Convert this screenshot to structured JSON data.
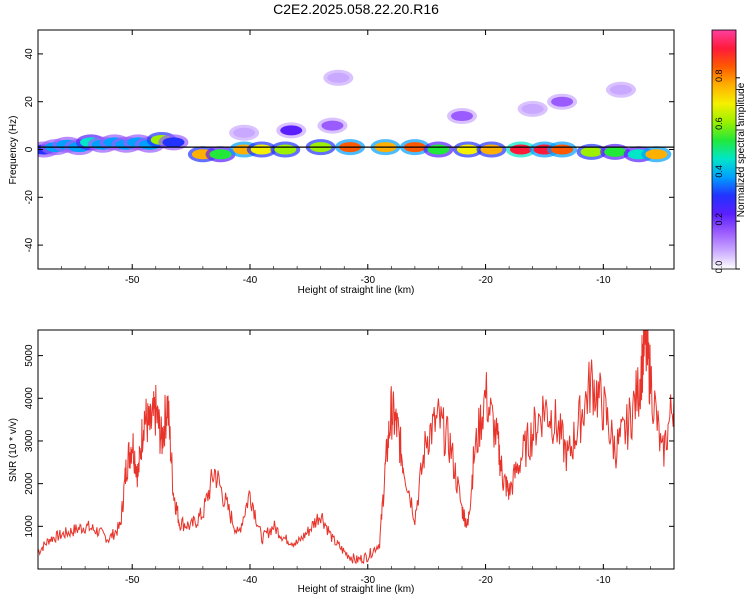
{
  "title": "C2E2.2025.058.22.20.R16",
  "colors": {
    "snr_line": "#e8332a",
    "center_line": "#000000",
    "colorbar": [
      "#ffffff",
      "#c9a8ff",
      "#9b5cff",
      "#5a1fff",
      "#2233ff",
      "#00a0ff",
      "#00e6c8",
      "#22e83a",
      "#9cf000",
      "#f5f000",
      "#ffb000",
      "#ff5a00",
      "#ff1a3a",
      "#ff3fa0"
    ]
  },
  "chart_data": [
    {
      "type": "heatmap",
      "xlabel": "Height of straight line (km)",
      "ylabel": "Frequency (Hz)",
      "xlim": [
        -58,
        -4
      ],
      "ylim": [
        -50,
        50
      ],
      "xticks": [
        -50,
        -40,
        -30,
        -20,
        -10
      ],
      "yticks": [
        -40,
        -20,
        0,
        20,
        40
      ],
      "xtick_labels": [
        "-50",
        "-40",
        "-30",
        "-20",
        "-10"
      ],
      "ytick_labels": [
        "-40",
        "-20",
        "0",
        "20",
        "40"
      ],
      "colorbar": {
        "label": "Normalized spectral amplitude",
        "range": [
          0,
          1
        ],
        "ticks": [
          0.0,
          0.2,
          0.4,
          0.6,
          0.8
        ],
        "tick_labels": [
          "0.0",
          "0.2",
          "0.4",
          "0.6",
          "0.8"
        ]
      },
      "model_line": {
        "x": [
          -58,
          -4
        ],
        "y": [
          1,
          1
        ]
      },
      "cells": [
        {
          "x": -57.5,
          "y": 0,
          "v": 0.3
        },
        {
          "x": -56.5,
          "y": 1,
          "v": 0.35
        },
        {
          "x": -55.5,
          "y": 2,
          "v": 0.4
        },
        {
          "x": -54.5,
          "y": 1,
          "v": 0.35
        },
        {
          "x": -53.5,
          "y": 3,
          "v": 0.45
        },
        {
          "x": -52.5,
          "y": 2,
          "v": 0.4
        },
        {
          "x": -51.5,
          "y": 3,
          "v": 0.4
        },
        {
          "x": -50.5,
          "y": 2,
          "v": 0.35
        },
        {
          "x": -49.5,
          "y": 3,
          "v": 0.4
        },
        {
          "x": -48.5,
          "y": 2,
          "v": 0.35
        },
        {
          "x": -47.5,
          "y": 4,
          "v": 0.6
        },
        {
          "x": -46.5,
          "y": 3,
          "v": 0.3
        },
        {
          "x": -44.0,
          "y": -2,
          "v": 0.75
        },
        {
          "x": -42.5,
          "y": -2,
          "v": 0.5
        },
        {
          "x": -40.5,
          "y": 0,
          "v": 0.8
        },
        {
          "x": -39.0,
          "y": 0,
          "v": 0.7
        },
        {
          "x": -37.0,
          "y": 0,
          "v": 0.6
        },
        {
          "x": -34.0,
          "y": 1,
          "v": 0.65
        },
        {
          "x": -31.5,
          "y": 1,
          "v": 0.85
        },
        {
          "x": -28.5,
          "y": 1,
          "v": 0.8
        },
        {
          "x": -26.0,
          "y": 1,
          "v": 0.85
        },
        {
          "x": -24.0,
          "y": 0,
          "v": 0.55
        },
        {
          "x": -21.5,
          "y": 0,
          "v": 0.7
        },
        {
          "x": -19.5,
          "y": 0,
          "v": 0.75
        },
        {
          "x": -17.0,
          "y": 0,
          "v": 0.95
        },
        {
          "x": -15.0,
          "y": 0,
          "v": 0.9
        },
        {
          "x": -13.5,
          "y": 0,
          "v": 0.85
        },
        {
          "x": -11.0,
          "y": -1,
          "v": 0.6
        },
        {
          "x": -9.0,
          "y": -1,
          "v": 0.5
        },
        {
          "x": -7.0,
          "y": -2,
          "v": 0.45
        },
        {
          "x": -5.5,
          "y": -2,
          "v": 0.8
        },
        {
          "x": -36.5,
          "y": 8,
          "v": 0.2
        },
        {
          "x": -33.0,
          "y": 10,
          "v": 0.15
        },
        {
          "x": -22.0,
          "y": 14,
          "v": 0.12
        },
        {
          "x": -16.0,
          "y": 17,
          "v": 0.1
        },
        {
          "x": -13.5,
          "y": 20,
          "v": 0.15
        },
        {
          "x": -32.5,
          "y": 30,
          "v": 0.05
        },
        {
          "x": -40.5,
          "y": 7,
          "v": 0.1
        },
        {
          "x": -8.5,
          "y": 25,
          "v": 0.06
        }
      ]
    },
    {
      "type": "line",
      "xlabel": "Height of straight line (km)",
      "ylabel": "SNR (10 * v/v)",
      "xlim": [
        -58,
        -4
      ],
      "ylim": [
        0,
        5600
      ],
      "xticks": [
        -50,
        -40,
        -30,
        -20,
        -10
      ],
      "yticks": [
        1000,
        2000,
        3000,
        4000,
        5000
      ],
      "xtick_labels": [
        "-50",
        "-40",
        "-30",
        "-20",
        "-10"
      ],
      "ytick_labels": [
        "1000",
        "2000",
        "3000",
        "4000",
        "5000"
      ],
      "series": [
        {
          "x": [
            -58,
            -57,
            -56,
            -55,
            -54,
            -53,
            -52,
            -51,
            -50.5,
            -50,
            -49.5,
            -49,
            -48.5,
            -48,
            -47.5,
            -47,
            -46.5,
            -46,
            -45,
            -44,
            -43,
            -42,
            -41,
            -40,
            -39,
            -38,
            -37,
            -36,
            -35,
            -34,
            -33,
            -32,
            -31,
            -30,
            -29,
            -28.5,
            -28,
            -27.5,
            -27,
            -26,
            -25,
            -24,
            -23,
            -22,
            -21.5,
            -21,
            -20,
            -19,
            -18.5,
            -18,
            -17,
            -16,
            -15,
            -14,
            -13,
            -12,
            -11,
            -10,
            -9,
            -8,
            -7,
            -6.5,
            -6,
            -5,
            -4
          ],
          "y": [
            400,
            700,
            800,
            900,
            1000,
            900,
            700,
            1000,
            2400,
            3000,
            2200,
            3600,
            3300,
            3700,
            3000,
            3900,
            1800,
            1100,
            1000,
            1300,
            2300,
            1500,
            800,
            1800,
            700,
            1000,
            700,
            600,
            900,
            1300,
            700,
            400,
            200,
            300,
            600,
            2400,
            3700,
            3300,
            2500,
            1200,
            3100,
            3500,
            2900,
            1400,
            1000,
            2600,
            4100,
            3000,
            2100,
            1800,
            2600,
            3200,
            3800,
            3400,
            2600,
            3500,
            4400,
            3800,
            2800,
            3300,
            4200,
            5300,
            4500,
            2600,
            4000
          ]
        }
      ]
    }
  ]
}
